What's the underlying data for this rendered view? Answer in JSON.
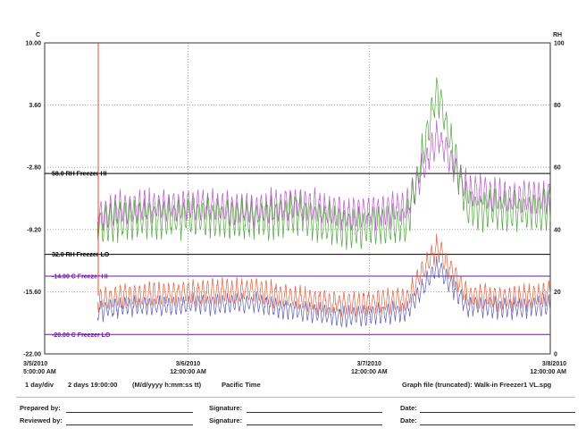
{
  "chart_data": {
    "type": "line",
    "left_axis": {
      "unit": "C",
      "ticks": [
        "10.00",
        "3.60",
        "-2.80",
        "-9.20",
        "-15.60",
        "-22.00"
      ],
      "ylim": [
        -22.0,
        10.0
      ]
    },
    "right_axis": {
      "unit": "RH",
      "ticks": [
        "100",
        "80",
        "60",
        "40",
        "20",
        "0"
      ],
      "ylim": [
        0,
        100
      ]
    },
    "x_ticks": [
      {
        "date": "3/5/2010",
        "time": "5:00:00 AM",
        "t": 0
      },
      {
        "date": "3/6/2010",
        "time": "12:00:00 AM",
        "t": 19
      },
      {
        "date": "3/7/2010",
        "time": "12:00:00 AM",
        "t": 43
      },
      {
        "date": "3/8/2010",
        "time": "12:00:00 AM",
        "t": 67
      }
    ],
    "x_range_hours": [
      0,
      67
    ],
    "thresholds": [
      {
        "label": "58.0 RH Freezer HI",
        "axis": "right",
        "value": 58.0,
        "color": "#000000"
      },
      {
        "label": "32.0 RH Freezer LO",
        "axis": "right",
        "value": 32.0,
        "color": "#000000"
      },
      {
        "label": "-14.00 C Freezer HI",
        "axis": "left",
        "value": -14.0,
        "color": "#6a1b9a"
      },
      {
        "label": "-20.00 C Freezer LO",
        "axis": "left",
        "value": -20.0,
        "color": "#6a1b9a"
      }
    ],
    "series": [
      {
        "axis": "right",
        "color": "#b04ac0",
        "approx_values": {
          "t": [
            7,
            10,
            20,
            28,
            33,
            40,
            48,
            52,
            56,
            62,
            67
          ],
          "y": [
            44,
            47,
            48,
            46,
            49,
            45,
            47,
            70,
            53,
            50,
            51
          ]
        }
      },
      {
        "axis": "right",
        "color": "#3f9a2a",
        "approx_values": {
          "t": [
            7,
            10,
            20,
            28,
            33,
            40,
            48,
            52,
            56,
            62,
            67
          ],
          "y": [
            41,
            43,
            44,
            43,
            45,
            40,
            42,
            85,
            47,
            46,
            46
          ]
        }
      },
      {
        "axis": "left",
        "color": "#e0502a",
        "approx_values": {
          "t": [
            7,
            10,
            20,
            28,
            33,
            40,
            48,
            52,
            56,
            62,
            67
          ],
          "y": [
            -16.5,
            -16.1,
            -15.6,
            -15.5,
            -16.3,
            -16.9,
            -16.4,
            -11.0,
            -16.0,
            -16.3,
            -15.7
          ]
        }
      },
      {
        "axis": "left",
        "color": "#4a4aa8",
        "approx_values": {
          "t": [
            7,
            10,
            20,
            28,
            33,
            40,
            48,
            52,
            56,
            62,
            67
          ],
          "y": [
            -17.6,
            -17.2,
            -16.9,
            -16.8,
            -17.5,
            -18.2,
            -17.6,
            -13.0,
            -17.1,
            -17.3,
            -17.0
          ]
        }
      }
    ]
  },
  "footer": {
    "scale": "1 day/div",
    "span": "2 days 19:00:00",
    "format": "(M/d/yyyy h:mm:ss tt)",
    "timezone": "Pacific Time",
    "file": "Graph file (truncated): Walk-in Freezer1 VL.spg"
  },
  "signoff": {
    "prepared": "Prepared by:",
    "reviewed": "Reviewed by:",
    "signature": "Signature:",
    "date": "Date:"
  }
}
